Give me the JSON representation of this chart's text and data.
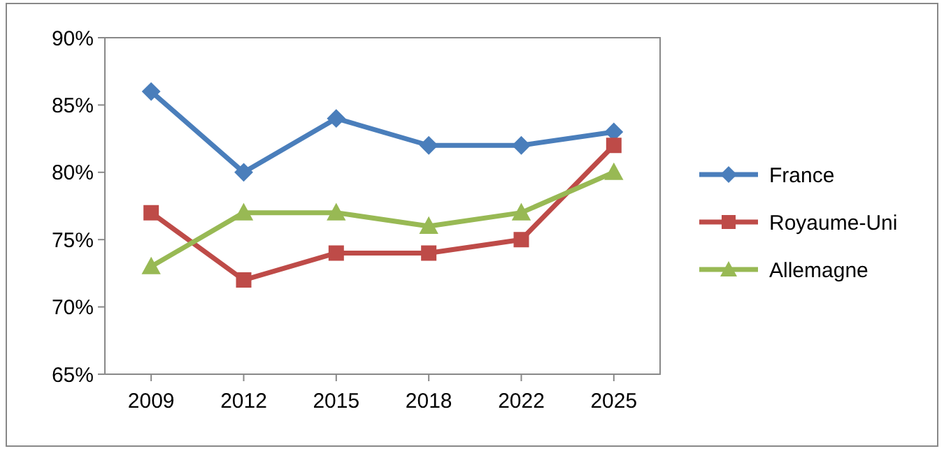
{
  "chart_data": {
    "type": "line",
    "categories": [
      "2009",
      "2012",
      "2015",
      "2018",
      "2022",
      "2025"
    ],
    "series": [
      {
        "name": "France",
        "color": "#4a7ebb",
        "marker": "diamond",
        "values": [
          86,
          80,
          84,
          82,
          82,
          83
        ]
      },
      {
        "name": "Royaume-Uni",
        "color": "#be4b48",
        "marker": "square",
        "values": [
          77,
          72,
          74,
          74,
          75,
          82
        ]
      },
      {
        "name": "Allemagne",
        "color": "#98b954",
        "marker": "triangle",
        "values": [
          73,
          77,
          77,
          76,
          77,
          80
        ]
      }
    ],
    "ylim": [
      65,
      90
    ],
    "yticks": [
      {
        "value": 65,
        "label": "65%"
      },
      {
        "value": 70,
        "label": "70%"
      },
      {
        "value": 75,
        "label": "75%"
      },
      {
        "value": 80,
        "label": "80%"
      },
      {
        "value": 85,
        "label": "85%"
      },
      {
        "value": 90,
        "label": "90%"
      }
    ],
    "grid": false,
    "legend": "right",
    "line_style": "solid"
  }
}
